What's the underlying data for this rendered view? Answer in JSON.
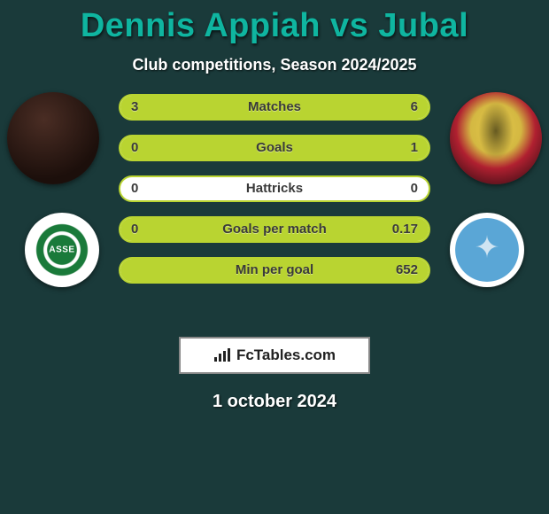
{
  "header": {
    "player1": "Dennis Appiah",
    "vs": "vs",
    "player2": "Jubal",
    "subtitle": "Club competitions, Season 2024/2025"
  },
  "palette": {
    "bar_fill": "#b9d431",
    "bar_border": "#b9d431",
    "bar_bg": "#ffffff",
    "page_bg": "#1a3a3a",
    "title_color": "#0fb5a0",
    "text_color": "#ffffff"
  },
  "bars": [
    {
      "label": "Matches",
      "left": "3",
      "right": "6",
      "left_pct": 33,
      "right_pct": 67
    },
    {
      "label": "Goals",
      "left": "0",
      "right": "1",
      "left_pct": 0,
      "right_pct": 100
    },
    {
      "label": "Hattricks",
      "left": "0",
      "right": "0",
      "left_pct": 0,
      "right_pct": 0
    },
    {
      "label": "Goals per match",
      "left": "0",
      "right": "0.17",
      "left_pct": 0,
      "right_pct": 100
    },
    {
      "label": "Min per goal",
      "left": "",
      "right": "652",
      "left_pct": 0,
      "right_pct": 100
    }
  ],
  "branding": {
    "site": "FcTables.com"
  },
  "date": "1 october 2024",
  "icons": {
    "player1_avatar": "player-photo-left",
    "player2_avatar": "player-photo-right",
    "club1_badge": "saint-etienne-badge",
    "club2_badge": "auxerre-badge"
  }
}
